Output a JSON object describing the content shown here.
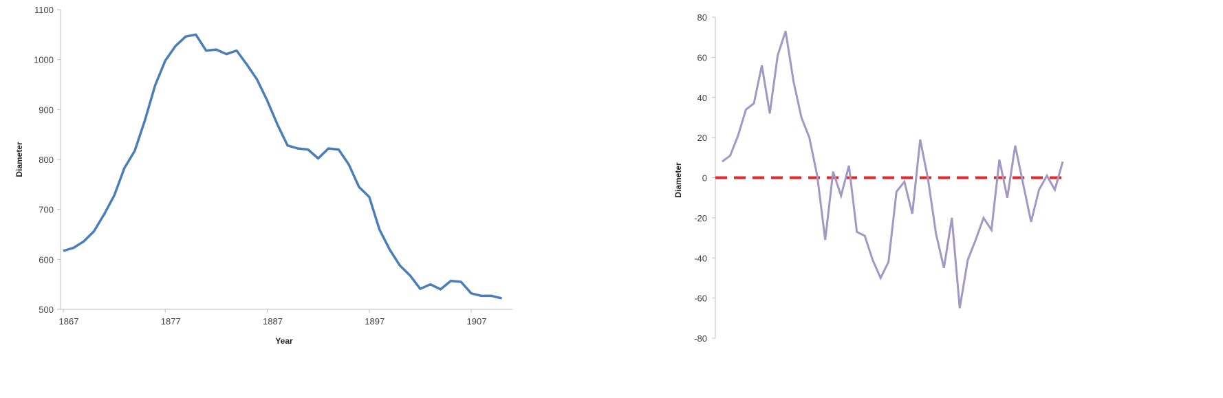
{
  "chart_data": [
    {
      "type": "line",
      "xlabel": "Year",
      "ylabel": "Diameter",
      "xlim": [
        1867,
        1911
      ],
      "ylim": [
        500,
        1100
      ],
      "xticks": [
        "1867",
        "1877",
        "1887",
        "1897",
        "1907"
      ],
      "yticks": [
        "500",
        "600",
        "700",
        "800",
        "900",
        "1000",
        "1100"
      ],
      "grid": false,
      "color": "#4a7ebb",
      "x": [
        1867,
        1868,
        1869,
        1870,
        1871,
        1872,
        1873,
        1874,
        1875,
        1876,
        1877,
        1878,
        1879,
        1880,
        1881,
        1882,
        1883,
        1884,
        1885,
        1886,
        1887,
        1888,
        1889,
        1890,
        1891,
        1892,
        1893,
        1894,
        1895,
        1896,
        1897,
        1898,
        1899,
        1900,
        1901,
        1902,
        1903,
        1904,
        1905,
        1906,
        1907,
        1908,
        1909,
        1910
      ],
      "values": [
        617,
        623,
        636,
        656,
        690,
        728,
        783,
        817,
        878,
        948,
        998,
        1027,
        1046,
        1050,
        1018,
        1020,
        1011,
        1018,
        990,
        960,
        918,
        870,
        828,
        822,
        820,
        802,
        822,
        820,
        790,
        745,
        725,
        660,
        620,
        588,
        568,
        541,
        550,
        540,
        557,
        555,
        532,
        527,
        527,
        522
      ]
    },
    {
      "type": "line",
      "xlabel": "",
      "ylabel": "Diameter",
      "ylim": [
        -80,
        80
      ],
      "yticks": [
        "-80",
        "-60",
        "-40",
        "-20",
        "0",
        "20",
        "40",
        "60",
        "80"
      ],
      "grid": false,
      "color": "#a397c4",
      "reference_line": {
        "y": 0,
        "style": "dashed",
        "color": "#e8262a"
      },
      "values": [
        8,
        11,
        21,
        34,
        37,
        56,
        32,
        61,
        73,
        48,
        30,
        20,
        1,
        -31,
        3,
        -9,
        6,
        -27,
        -29,
        -41,
        -50,
        -42,
        -7,
        -2,
        -18,
        19,
        -1,
        -28,
        -45,
        -20,
        -65,
        -41,
        -31,
        -20,
        -26,
        9,
        -10,
        16,
        -3,
        -22,
        -6,
        1,
        -6,
        8
      ]
    }
  ]
}
